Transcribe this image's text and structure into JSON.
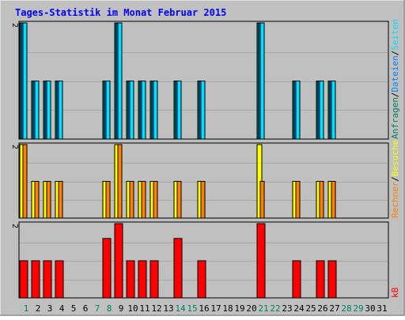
{
  "chart_data": [
    {
      "type": "bar",
      "title": "Tages-Statistik im Monat Februar 2015",
      "categories": [
        "1",
        "2",
        "3",
        "4",
        "5",
        "6",
        "7",
        "8",
        "9",
        "10",
        "11",
        "12",
        "13",
        "14",
        "15",
        "16",
        "17",
        "18",
        "19",
        "20",
        "21",
        "22",
        "23",
        "24",
        "25",
        "26",
        "27",
        "28",
        "29",
        "30",
        "31"
      ],
      "weekend_days": [
        "1",
        "7",
        "8",
        "14",
        "15",
        "21",
        "22",
        "28",
        "29"
      ],
      "ytick": "2",
      "ylim": [
        0,
        2
      ],
      "side_labels": [
        "Anfragen",
        "/",
        "Dateien",
        "/",
        "Seiten"
      ],
      "series": [
        {
          "name": "Anfragen",
          "values": [
            2,
            1,
            1,
            1,
            0,
            0,
            0,
            1,
            2,
            1,
            1,
            1,
            0,
            1,
            0,
            1,
            0,
            0,
            0,
            0,
            2,
            0,
            0,
            1,
            0,
            1,
            1,
            0,
            0,
            0,
            0
          ]
        },
        {
          "name": "Dateien",
          "values": [
            2,
            1,
            1,
            1,
            0,
            0,
            0,
            1,
            2,
            1,
            1,
            1,
            0,
            1,
            0,
            1,
            0,
            0,
            0,
            0,
            2,
            0,
            0,
            1,
            0,
            1,
            1,
            0,
            0,
            0,
            0
          ]
        },
        {
          "name": "Seiten",
          "values": [
            2,
            1,
            1,
            1,
            0,
            0,
            0,
            1,
            2,
            1,
            1,
            1,
            0,
            1,
            0,
            1,
            0,
            0,
            0,
            0,
            2,
            0,
            0,
            1,
            0,
            1,
            1,
            0,
            0,
            0,
            0
          ]
        }
      ]
    },
    {
      "type": "bar",
      "ytick": "2",
      "ylim": [
        0,
        2
      ],
      "side_labels": [
        "Rechner",
        "/",
        "Besuche"
      ],
      "series": [
        {
          "name": "Besuche",
          "values": [
            2,
            1,
            1,
            1,
            0,
            0,
            0,
            1,
            2,
            1,
            1,
            1,
            0,
            1,
            0,
            1,
            0,
            0,
            0,
            0,
            2,
            0,
            0,
            1,
            0,
            1,
            1,
            0,
            0,
            0,
            0
          ]
        },
        {
          "name": "Rechner",
          "values": [
            2,
            1,
            1,
            1,
            0,
            0,
            0,
            1,
            2,
            1,
            1,
            1,
            0,
            1,
            0,
            1,
            0,
            0,
            0,
            0,
            1,
            0,
            0,
            1,
            0,
            1,
            1,
            0,
            0,
            0,
            0
          ]
        }
      ]
    },
    {
      "type": "bar",
      "ytick": "2",
      "ylim": [
        0,
        2
      ],
      "side_labels": [
        "kB"
      ],
      "series": [
        {
          "name": "kB",
          "values": [
            1,
            1,
            1,
            1,
            0,
            0,
            0,
            1.6,
            2,
            1,
            1,
            1,
            0,
            1.6,
            0,
            1,
            0,
            0,
            0,
            0,
            2,
            0,
            0,
            1,
            0,
            1,
            1,
            0,
            0,
            0,
            0
          ]
        }
      ]
    }
  ],
  "colors": {
    "background": "#c0c0c0",
    "title": "#0000ff",
    "anfragen": "#00805c",
    "dateien": "#0080ff",
    "seiten": "#00e0ff",
    "besuche": "#ffff00",
    "rechner": "#ff8000",
    "kb": "#ff0000",
    "weekday_label": "#000000",
    "weekend_label": "#00805c",
    "separator": "#000000"
  }
}
